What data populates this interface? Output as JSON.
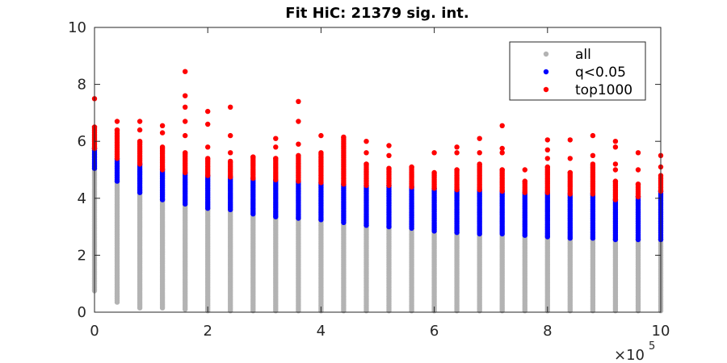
{
  "chart_data": {
    "type": "scatter",
    "title": "Fit HiC: 21379 sig. int.",
    "xlabel": "",
    "ylabel": "",
    "x_multiplier_label": "×10",
    "x_multiplier_exponent": "5",
    "xlim": [
      0,
      1000000
    ],
    "ylim": [
      0,
      10
    ],
    "x_ticks": [
      0,
      200000,
      400000,
      600000,
      800000,
      1000000
    ],
    "x_tick_labels": [
      "0",
      "2",
      "4",
      "6",
      "8",
      "10"
    ],
    "y_ticks": [
      0,
      2,
      4,
      6,
      8,
      10
    ],
    "y_tick_labels": [
      "0",
      "2",
      "4",
      "6",
      "8",
      "10"
    ],
    "grid": false,
    "legend_position": "top-right",
    "colors": {
      "all": "#b3b3b3",
      "q": "#0000ff",
      "top": "#ff0000"
    },
    "series": [
      {
        "name": "all",
        "key": "all"
      },
      {
        "name": "q<0.05",
        "key": "q"
      },
      {
        "name": "top1000",
        "key": "top"
      }
    ],
    "columns": [
      {
        "x": 0,
        "all": [
          0.75,
          5.05
        ],
        "q": [
          5.05,
          5.75
        ],
        "top": [
          5.75,
          6.5
        ],
        "top_outliers": [
          7.5
        ]
      },
      {
        "x": 40000,
        "all": [
          0.35,
          4.6
        ],
        "q": [
          4.6,
          5.4
        ],
        "top": [
          5.4,
          6.4
        ],
        "top_outliers": [
          6.7
        ]
      },
      {
        "x": 80000,
        "all": [
          0.15,
          4.2
        ],
        "q": [
          4.2,
          5.2
        ],
        "top": [
          5.2,
          6.0
        ],
        "top_outliers": [
          6.4,
          6.7
        ]
      },
      {
        "x": 120000,
        "all": [
          0.15,
          3.95
        ],
        "q": [
          3.95,
          5.0
        ],
        "top": [
          5.0,
          5.8
        ],
        "top_outliers": [
          6.3,
          6.55
        ]
      },
      {
        "x": 160000,
        "all": [
          0.1,
          3.8
        ],
        "q": [
          3.8,
          4.9
        ],
        "top": [
          4.9,
          5.6
        ],
        "top_outliers": [
          6.2,
          6.7,
          7.2,
          7.6,
          8.45
        ]
      },
      {
        "x": 200000,
        "all": [
          0.05,
          3.65
        ],
        "q": [
          3.65,
          4.8
        ],
        "top": [
          4.8,
          5.4
        ],
        "top_outliers": [
          5.8,
          6.6,
          7.05
        ]
      },
      {
        "x": 240000,
        "all": [
          0.05,
          3.6
        ],
        "q": [
          3.6,
          4.75
        ],
        "top": [
          4.75,
          5.3
        ],
        "top_outliers": [
          5.6,
          6.2,
          7.2
        ]
      },
      {
        "x": 280000,
        "all": [
          0.05,
          3.45
        ],
        "q": [
          3.45,
          4.7
        ],
        "top": [
          4.7,
          5.45
        ],
        "top_outliers": []
      },
      {
        "x": 320000,
        "all": [
          0.05,
          3.35
        ],
        "q": [
          3.35,
          4.65
        ],
        "top": [
          4.65,
          5.4
        ],
        "top_outliers": [
          5.8,
          6.1
        ]
      },
      {
        "x": 360000,
        "all": [
          0.05,
          3.3
        ],
        "q": [
          3.3,
          4.6
        ],
        "top": [
          4.6,
          5.5
        ],
        "top_outliers": [
          5.9,
          6.7,
          7.4
        ]
      },
      {
        "x": 400000,
        "all": [
          0.05,
          3.25
        ],
        "q": [
          3.25,
          4.55
        ],
        "top": [
          4.55,
          5.6
        ],
        "top_outliers": [
          6.2
        ]
      },
      {
        "x": 440000,
        "all": [
          0.05,
          3.15
        ],
        "q": [
          3.15,
          4.5
        ],
        "top": [
          4.5,
          6.15
        ],
        "top_outliers": []
      },
      {
        "x": 480000,
        "all": [
          0.05,
          3.05
        ],
        "q": [
          3.05,
          4.45
        ],
        "top": [
          4.45,
          5.2
        ],
        "top_outliers": [
          5.6,
          6.0
        ]
      },
      {
        "x": 520000,
        "all": [
          0.05,
          3.0
        ],
        "q": [
          3.0,
          4.45
        ],
        "top": [
          4.45,
          5.05
        ],
        "top_outliers": [
          5.5,
          5.85
        ]
      },
      {
        "x": 560000,
        "all": [
          0.05,
          2.95
        ],
        "q": [
          2.95,
          4.4
        ],
        "top": [
          4.4,
          5.1
        ],
        "top_outliers": []
      },
      {
        "x": 600000,
        "all": [
          0.05,
          2.85
        ],
        "q": [
          2.85,
          4.35
        ],
        "top": [
          4.35,
          4.9
        ],
        "top_outliers": [
          5.6
        ]
      },
      {
        "x": 640000,
        "all": [
          0.05,
          2.8
        ],
        "q": [
          2.8,
          4.3
        ],
        "top": [
          4.3,
          5.0
        ],
        "top_outliers": [
          5.6,
          5.8
        ]
      },
      {
        "x": 680000,
        "all": [
          0.05,
          2.75
        ],
        "q": [
          2.75,
          4.3
        ],
        "top": [
          4.3,
          5.2
        ],
        "top_outliers": [
          5.6,
          6.1
        ]
      },
      {
        "x": 720000,
        "all": [
          0.05,
          2.75
        ],
        "q": [
          2.75,
          4.25
        ],
        "top": [
          4.25,
          5.0
        ],
        "top_outliers": [
          5.6,
          5.75,
          6.55
        ]
      },
      {
        "x": 760000,
        "all": [
          0.05,
          2.7
        ],
        "q": [
          2.7,
          4.2
        ],
        "top": [
          4.2,
          4.6
        ],
        "top_outliers": [
          5.0
        ]
      },
      {
        "x": 800000,
        "all": [
          0.05,
          2.65
        ],
        "q": [
          2.65,
          4.2
        ],
        "top": [
          4.2,
          5.1
        ],
        "top_outliers": [
          5.4,
          5.7,
          6.05
        ]
      },
      {
        "x": 840000,
        "all": [
          0.05,
          2.6
        ],
        "q": [
          2.6,
          4.15
        ],
        "top": [
          4.15,
          4.9
        ],
        "top_outliers": [
          5.4,
          6.05
        ]
      },
      {
        "x": 880000,
        "all": [
          0.05,
          2.6
        ],
        "q": [
          2.6,
          4.15
        ],
        "top": [
          4.15,
          5.2
        ],
        "top_outliers": [
          5.5,
          6.2
        ]
      },
      {
        "x": 920000,
        "all": [
          0.05,
          2.55
        ],
        "q": [
          2.55,
          3.95
        ],
        "top": [
          3.95,
          4.6
        ],
        "top_outliers": [
          5.0,
          5.2,
          5.8,
          6.0
        ]
      },
      {
        "x": 960000,
        "all": [
          0.05,
          2.55
        ],
        "q": [
          2.55,
          4.05
        ],
        "top": [
          4.05,
          4.5
        ],
        "top_outliers": [
          5.0,
          5.6
        ]
      },
      {
        "x": 1000000,
        "all": [
          0.05,
          2.55
        ],
        "q": [
          2.55,
          4.25
        ],
        "top": [
          4.25,
          4.8
        ],
        "top_outliers": [
          5.1,
          5.5
        ]
      }
    ]
  }
}
